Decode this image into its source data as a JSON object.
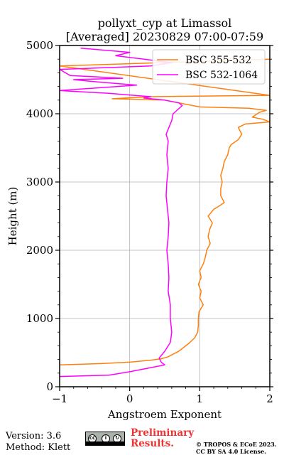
{
  "chart_data": {
    "type": "line",
    "title": [
      "pollyxt_cyp at Limassol",
      "[Averaged] 20230829 07:00-07:59"
    ],
    "xlabel": "Angstroem Exponent",
    "ylabel": "Height (m)",
    "xlim": [
      -1,
      2
    ],
    "ylim": [
      0,
      5000
    ],
    "xticks": [
      -1,
      0,
      1,
      2
    ],
    "xtick_labels": [
      "−1",
      "0",
      "1",
      "2"
    ],
    "yticks": [
      0,
      1000,
      2000,
      3000,
      4000,
      5000
    ],
    "ytick_labels": [
      "0",
      "1000",
      "2000",
      "3000",
      "4000",
      "5000"
    ],
    "grid": true,
    "legend_position": "top-right",
    "series": [
      {
        "name": "BSC 355-532",
        "color": "#ff7f0e",
        "points": [
          [
            -1.0,
            320
          ],
          [
            -0.4,
            340
          ],
          [
            0.0,
            360
          ],
          [
            0.3,
            390
          ],
          [
            0.45,
            410
          ],
          [
            0.55,
            440
          ],
          [
            0.7,
            520
          ],
          [
            0.85,
            640
          ],
          [
            0.93,
            720
          ],
          [
            0.97,
            800
          ],
          [
            0.98,
            900
          ],
          [
            0.98,
            1000
          ],
          [
            0.99,
            1100
          ],
          [
            1.05,
            1200
          ],
          [
            1.0,
            1300
          ],
          [
            1.02,
            1400
          ],
          [
            0.98,
            1500
          ],
          [
            1.02,
            1600
          ],
          [
            1.0,
            1700
          ],
          [
            1.05,
            1800
          ],
          [
            1.08,
            1900
          ],
          [
            1.1,
            2000
          ],
          [
            1.15,
            2100
          ],
          [
            1.12,
            2200
          ],
          [
            1.14,
            2300
          ],
          [
            1.18,
            2400
          ],
          [
            1.12,
            2500
          ],
          [
            1.16,
            2550
          ],
          [
            1.2,
            2600
          ],
          [
            1.28,
            2650
          ],
          [
            1.35,
            2700
          ],
          [
            1.3,
            2800
          ],
          [
            1.3,
            2900
          ],
          [
            1.32,
            3000
          ],
          [
            1.3,
            3100
          ],
          [
            1.33,
            3200
          ],
          [
            1.35,
            3300
          ],
          [
            1.4,
            3400
          ],
          [
            1.42,
            3500
          ],
          [
            1.45,
            3550
          ],
          [
            1.55,
            3620
          ],
          [
            1.6,
            3700
          ],
          [
            1.55,
            3800
          ],
          [
            1.65,
            3850
          ],
          [
            2.0,
            3880
          ],
          [
            1.9,
            3920
          ],
          [
            1.75,
            3950
          ],
          [
            1.85,
            4020
          ],
          [
            1.95,
            4050
          ],
          [
            1.7,
            4080
          ],
          [
            1.0,
            4100
          ],
          [
            0.5,
            4200
          ],
          [
            -0.25,
            4220
          ],
          [
            0.3,
            4250
          ],
          [
            2.0,
            4270
          ],
          [
            -1.0,
            4700
          ],
          [
            2.0,
            4800
          ]
        ]
      },
      {
        "name": "BSC 532-1064",
        "color": "#ff00ff",
        "points": [
          [
            -1.0,
            150
          ],
          [
            -0.3,
            170
          ],
          [
            0.0,
            220
          ],
          [
            0.3,
            280
          ],
          [
            0.5,
            320
          ],
          [
            0.45,
            360
          ],
          [
            0.42,
            420
          ],
          [
            0.5,
            520
          ],
          [
            0.58,
            650
          ],
          [
            0.6,
            800
          ],
          [
            0.58,
            1000
          ],
          [
            0.58,
            1200
          ],
          [
            0.55,
            1400
          ],
          [
            0.56,
            1600
          ],
          [
            0.55,
            1800
          ],
          [
            0.53,
            2000
          ],
          [
            0.55,
            2200
          ],
          [
            0.56,
            2400
          ],
          [
            0.54,
            2600
          ],
          [
            0.52,
            2800
          ],
          [
            0.53,
            3000
          ],
          [
            0.55,
            3200
          ],
          [
            0.53,
            3400
          ],
          [
            0.55,
            3600
          ],
          [
            0.52,
            3700
          ],
          [
            0.56,
            3800
          ],
          [
            0.6,
            3900
          ],
          [
            0.62,
            4000
          ],
          [
            0.75,
            4120
          ],
          [
            0.7,
            4160
          ],
          [
            0.5,
            4200
          ],
          [
            0.2,
            4230
          ],
          [
            0.3,
            4250
          ],
          [
            -0.3,
            4300
          ],
          [
            -1.0,
            4340
          ],
          [
            0.1,
            4420
          ],
          [
            -0.4,
            4460
          ],
          [
            -0.8,
            4500
          ],
          [
            -0.1,
            4520
          ],
          [
            -0.85,
            4560
          ],
          [
            -1.0,
            4650
          ],
          [
            0.3,
            4700
          ],
          [
            0.6,
            4750
          ],
          [
            -0.2,
            4850
          ],
          [
            0.0,
            4900
          ],
          [
            -0.7,
            4960
          ]
        ]
      }
    ]
  },
  "footer": {
    "version_line": "Version: 3.6",
    "method_line": "Method: Klett",
    "cc_icon": "cc-by-sa-icon",
    "cc_label": "BY SA",
    "prelim_line1": "Preliminary",
    "prelim_line2": "Results.",
    "license_line1": "© TROPOS & ECoE 2023.",
    "license_line2": "CC BY SA 4.0 License.",
    "prelim_color": "#ee3333"
  }
}
